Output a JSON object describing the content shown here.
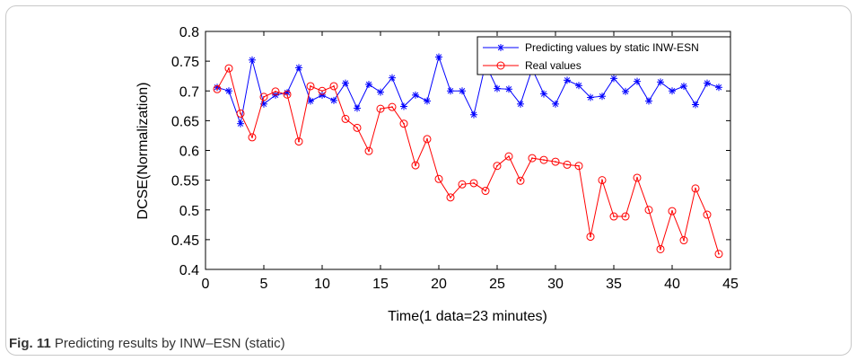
{
  "caption": {
    "label": "Fig. 11",
    "text": "Predicting results by INW–ESN (static)"
  },
  "colors": {
    "predicted": "#0000ff",
    "real": "#ff0000",
    "axis": "#000000"
  },
  "chart_data": {
    "type": "line",
    "title": "",
    "xlabel": "Time(1 data=23 minutes)",
    "ylabel": "DCSE(Normalization)",
    "xlim": [
      0,
      45
    ],
    "ylim": [
      0.4,
      0.8
    ],
    "xticks": [
      0,
      5,
      10,
      15,
      20,
      25,
      30,
      35,
      40,
      45
    ],
    "yticks": [
      0.4,
      0.45,
      0.5,
      0.55,
      0.6,
      0.65,
      0.7,
      0.75,
      0.8
    ],
    "grid": false,
    "legend_position": "top-right",
    "x": [
      1,
      2,
      3,
      4,
      5,
      6,
      7,
      8,
      9,
      10,
      11,
      12,
      13,
      14,
      15,
      16,
      17,
      18,
      19,
      20,
      21,
      22,
      23,
      24,
      25,
      26,
      27,
      28,
      29,
      30,
      31,
      32,
      33,
      34,
      35,
      36,
      37,
      38,
      39,
      40,
      41,
      42,
      43,
      44
    ],
    "series": [
      {
        "name": "Predicting values by static INW-ESN",
        "marker": "star",
        "color": "#0000ff",
        "values": [
          0.706,
          0.7,
          0.645,
          0.752,
          0.678,
          0.693,
          0.697,
          0.739,
          0.683,
          0.693,
          0.684,
          0.713,
          0.671,
          0.711,
          0.698,
          0.722,
          0.674,
          0.693,
          0.683,
          0.757,
          0.7,
          0.7,
          0.66,
          0.745,
          0.704,
          0.703,
          0.678,
          0.737,
          0.695,
          0.678,
          0.718,
          0.709,
          0.689,
          0.691,
          0.721,
          0.699,
          0.716,
          0.683,
          0.715,
          0.7,
          0.708,
          0.677,
          0.713,
          0.706
        ]
      },
      {
        "name": "Real values",
        "marker": "circle",
        "color": "#ff0000",
        "values": [
          0.703,
          0.738,
          0.662,
          0.622,
          0.69,
          0.699,
          0.694,
          0.615,
          0.708,
          0.7,
          0.708,
          0.653,
          0.638,
          0.599,
          0.67,
          0.673,
          0.645,
          0.575,
          0.619,
          0.552,
          0.521,
          0.543,
          0.545,
          0.532,
          0.574,
          0.59,
          0.549,
          0.587,
          0.584,
          0.581,
          0.576,
          0.574,
          0.455,
          0.55,
          0.489,
          0.489,
          0.554,
          0.5,
          0.434,
          0.498,
          0.449,
          0.536,
          0.492,
          0.426
        ]
      }
    ]
  }
}
